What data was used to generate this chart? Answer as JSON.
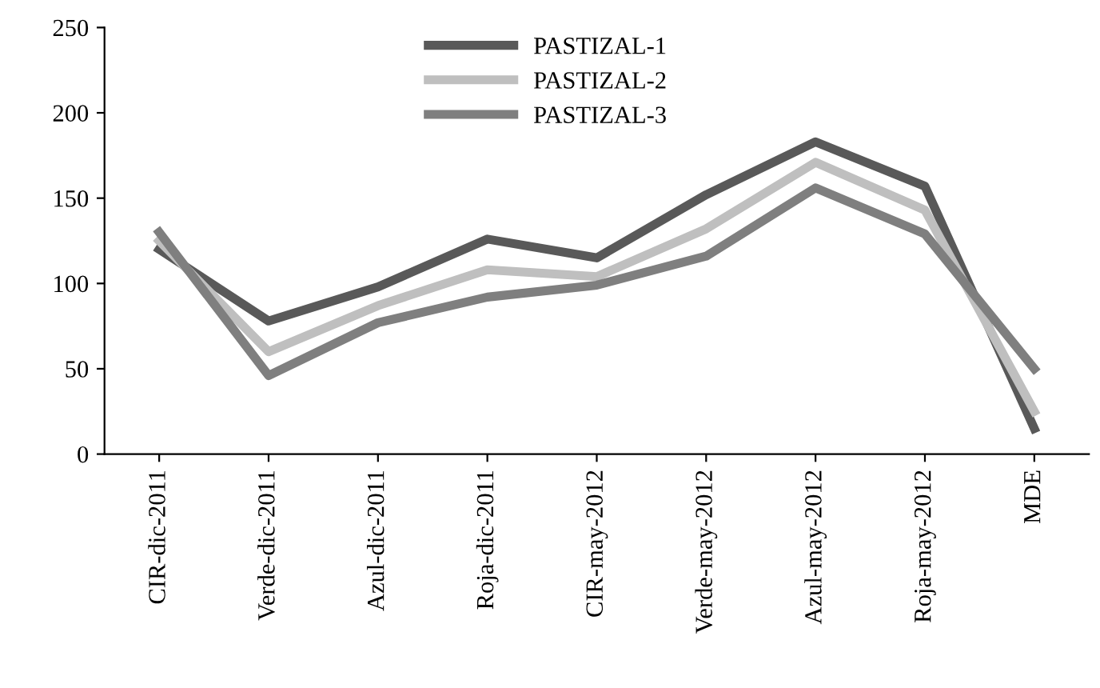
{
  "chart_data": {
    "type": "line",
    "categories": [
      "CIR-dic-2011",
      "Verde-dic-2011",
      "Azul-dic-2011",
      "Roja-dic-2011",
      "CIR-may-2012",
      "Verde-may-2012",
      "Azul-may-2012",
      "Roja-may-2012",
      "MDE"
    ],
    "series": [
      {
        "name": "PASTIZAL-1",
        "color": "#595959",
        "values": [
          120,
          78,
          98,
          126,
          115,
          152,
          183,
          157,
          15
        ]
      },
      {
        "name": "PASTIZAL-2",
        "color": "#bfbfbf",
        "values": [
          125,
          60,
          87,
          108,
          104,
          132,
          171,
          143,
          25
        ]
      },
      {
        "name": "PASTIZAL-3",
        "color": "#7f7f7f",
        "values": [
          130,
          46,
          77,
          92,
          99,
          116,
          156,
          129,
          50
        ]
      }
    ],
    "ylim": [
      0,
      250
    ],
    "yticks": [
      0,
      50,
      100,
      150,
      200,
      250
    ],
    "grid": false,
    "legend": "top",
    "marker": "none",
    "line_style": "solid"
  }
}
